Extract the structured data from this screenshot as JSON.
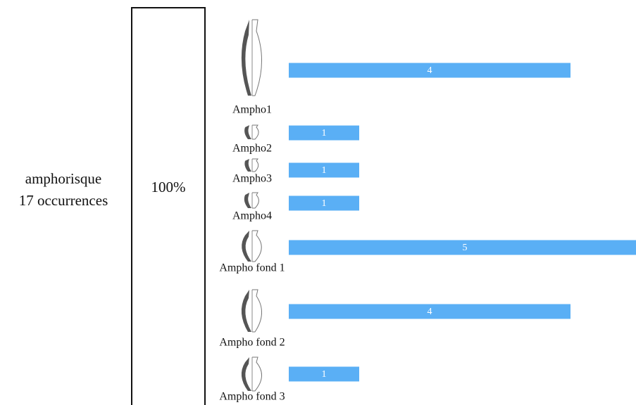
{
  "chart_data": {
    "type": "bar",
    "annotations": [
      "amphorisque",
      "17 occurrences",
      "100%"
    ],
    "categories": [
      "Ampho1",
      "Ampho2",
      "Ampho3",
      "Ampho4",
      "Ampho fond 1",
      "Ampho fond 2",
      "Ampho fond 3"
    ],
    "values": [
      4,
      1,
      1,
      1,
      5,
      4,
      1
    ],
    "color": "#5aaff5"
  }
}
